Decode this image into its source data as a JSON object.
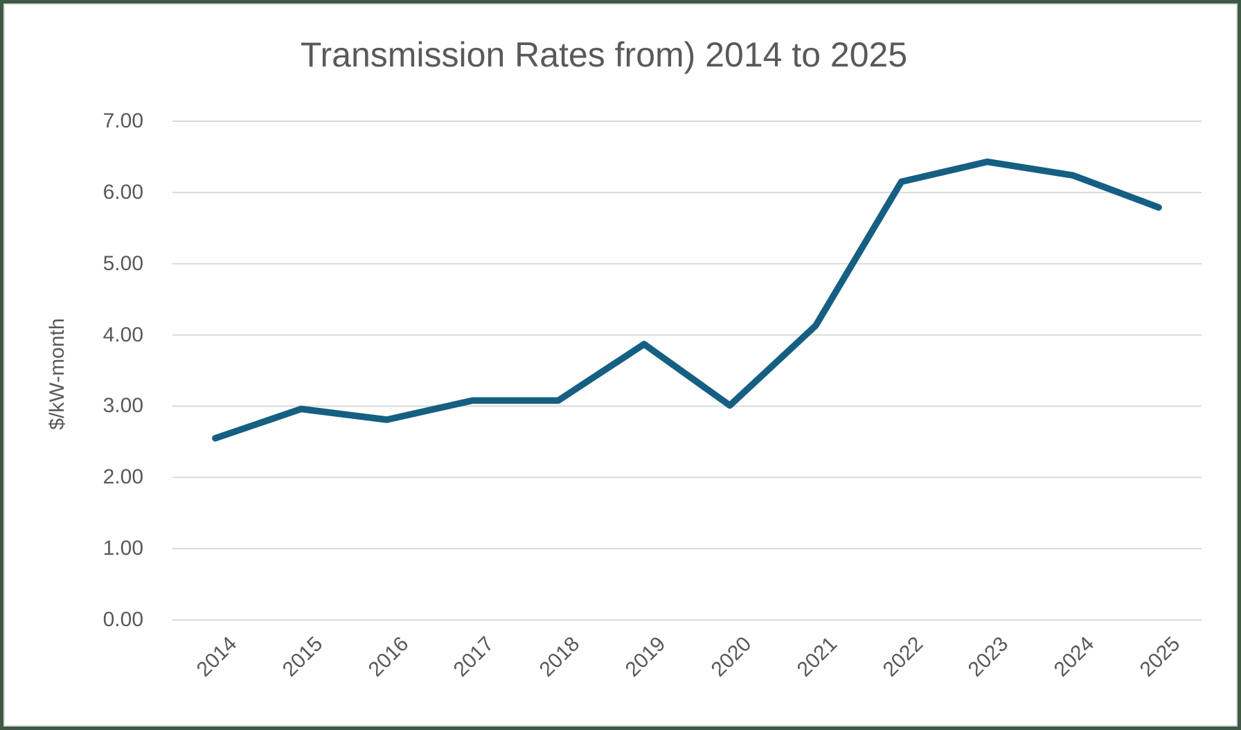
{
  "frame": {
    "border_color": "#3e5a44",
    "inner_edge_color": "#d9d9d9"
  },
  "chart_data": {
    "type": "line",
    "title": "Transmission Rates from) 2014 to 2025",
    "categories": [
      "2014",
      "2015",
      "2016",
      "2017",
      "2018",
      "2019",
      "2020",
      "2021",
      "2022",
      "2023",
      "2024",
      "2025"
    ],
    "values": [
      2.55,
      2.96,
      2.81,
      3.08,
      3.08,
      3.87,
      3.01,
      4.13,
      6.15,
      6.43,
      6.24,
      5.79
    ],
    "xlabel": "",
    "ylabel": "$/kW-month",
    "ylim": [
      0,
      7
    ],
    "y_ticks": [
      "0.00",
      "1.00",
      "2.00",
      "3.00",
      "4.00",
      "5.00",
      "6.00",
      "7.00"
    ],
    "x_tick_rotation_deg": -45,
    "grid": true,
    "legend": false,
    "line_color": "#156082",
    "line_width": 9.5,
    "gridline_color": "#D9D9D9",
    "text_color": "#595959",
    "background_color": "#FFFFFF"
  }
}
